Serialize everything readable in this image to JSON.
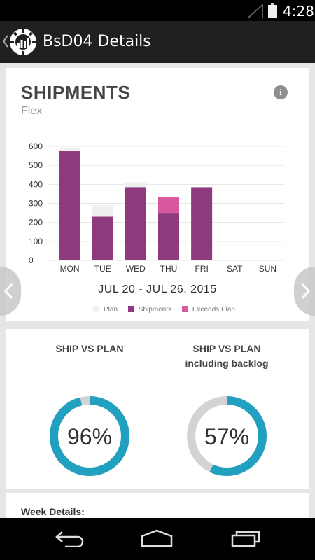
{
  "status_bar": {
    "time": "4:28"
  },
  "app_bar": {
    "title": "BsD04 Details"
  },
  "shipments_card": {
    "title": "SHIPMENTS",
    "subtitle": "Flex",
    "date_range": "JUL 20 - JUL 26, 2015",
    "legend": [
      {
        "label": "Plan",
        "color": "#efefef"
      },
      {
        "label": "Shipments",
        "color": "#8e3a7e"
      },
      {
        "label": "Exceeds Plan",
        "color": "#d8599e"
      }
    ]
  },
  "chart_data": {
    "type": "bar",
    "categories": [
      "MON",
      "TUE",
      "WED",
      "THU",
      "FRI",
      "SAT",
      "SUN"
    ],
    "series": [
      {
        "name": "Plan",
        "values": [
          590,
          290,
          410,
          250,
          380,
          0,
          0
        ]
      },
      {
        "name": "Shipments",
        "values": [
          575,
          230,
          385,
          250,
          385,
          0,
          0
        ]
      },
      {
        "name": "Exceeds Plan",
        "values": [
          0,
          0,
          0,
          85,
          0,
          0,
          0
        ]
      }
    ],
    "y_ticks": [
      0,
      100,
      200,
      300,
      400,
      500,
      600
    ],
    "ylim": [
      0,
      600
    ],
    "grid": true,
    "colors": {
      "plan": "#efefef",
      "shipments": "#8e3a7e",
      "exceeds": "#d8599e",
      "grid": "#e4e4e4"
    }
  },
  "gauges": [
    {
      "title_line1": "SHIP VS PLAN",
      "title_line2": "",
      "value_label": "96%",
      "fraction": 0.96
    },
    {
      "title_line1": "SHIP VS PLAN",
      "title_line2": "including backlog",
      "value_label": "57%",
      "fraction": 0.57
    }
  ],
  "gauge_colors": {
    "fill": "#21a0c0",
    "track": "#d3d3d3"
  },
  "week_details": {
    "label": "Week Details:"
  },
  "icons": {
    "back": "chevron-left-icon",
    "logo": "gear-factory-icon",
    "info": "info-icon",
    "prev": "chevron-left-icon",
    "next": "chevron-right-icon",
    "nav_back": "back-arrow-icon",
    "nav_home": "home-icon",
    "nav_recent": "recent-apps-icon"
  }
}
